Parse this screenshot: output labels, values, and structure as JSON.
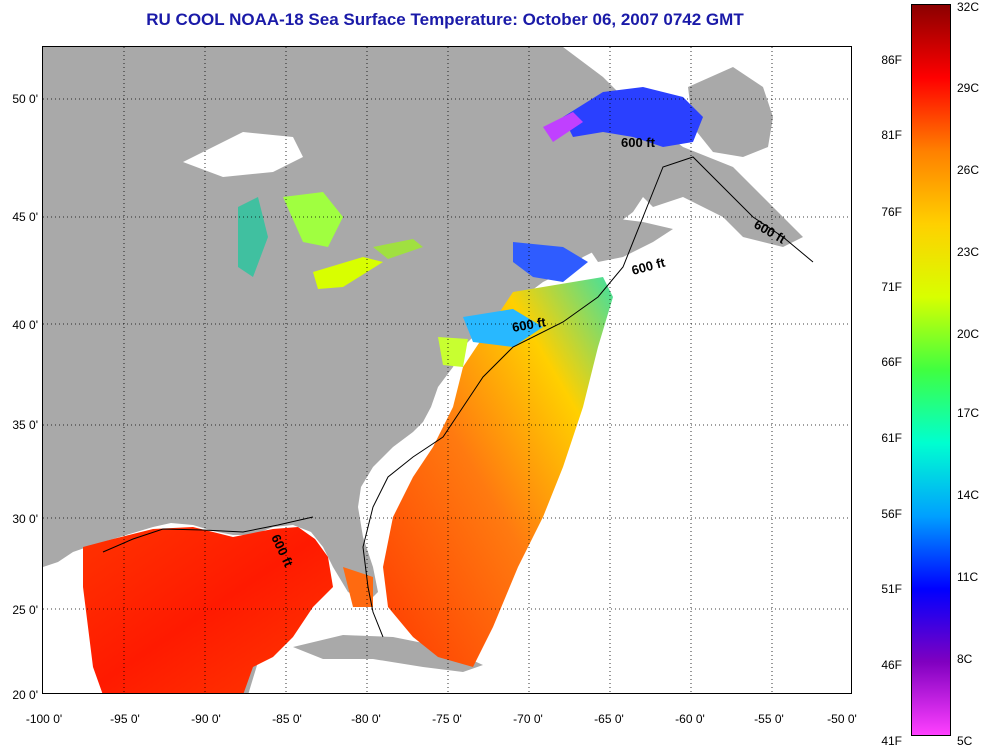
{
  "title": "RU COOL  NOAA-18  Sea Surface Temperature:  October 06, 2007 0742 GMT",
  "map": {
    "lon_range": [
      -100,
      -50
    ],
    "lat_range": [
      20,
      52.5
    ],
    "lat_ticks": [
      "20 0'",
      "25 0'",
      "30 0'",
      "35 0'",
      "40 0'",
      "45 0'",
      "50 0'"
    ],
    "lon_ticks": [
      "-100 0'",
      "-95 0'",
      "-90 0'",
      "-85 0'",
      "-80 0'",
      "-75 0'",
      "-70 0'",
      "-65 0'",
      "-60 0'",
      "-55 0'",
      "-50 0'"
    ],
    "grid": true,
    "contour_labels": [
      "600 ft",
      "600 ft",
      "600 ft",
      "600 ft",
      "600 ft"
    ],
    "colors": {
      "land": "#a9a9a9",
      "no_data": "#ffffff",
      "warm": "#ff2a00",
      "cool": "#1a3cff"
    }
  },
  "colorbar": {
    "fahrenheit_labels": [
      "86F",
      "81F",
      "76F",
      "71F",
      "66F",
      "61F",
      "56F",
      "51F",
      "46F",
      "41F"
    ],
    "celsius_labels": [
      "32C",
      "29C",
      "26C",
      "23C",
      "20C",
      "17C",
      "14C",
      "11C",
      "8C",
      "5C"
    ],
    "gradient_top_to_bottom": [
      "#8b0000",
      "#ff0000",
      "#ff8000",
      "#ffd000",
      "#d8ff00",
      "#40ff40",
      "#00ffd0",
      "#00a0ff",
      "#0000ff",
      "#8000c0",
      "#ff40ff"
    ]
  }
}
